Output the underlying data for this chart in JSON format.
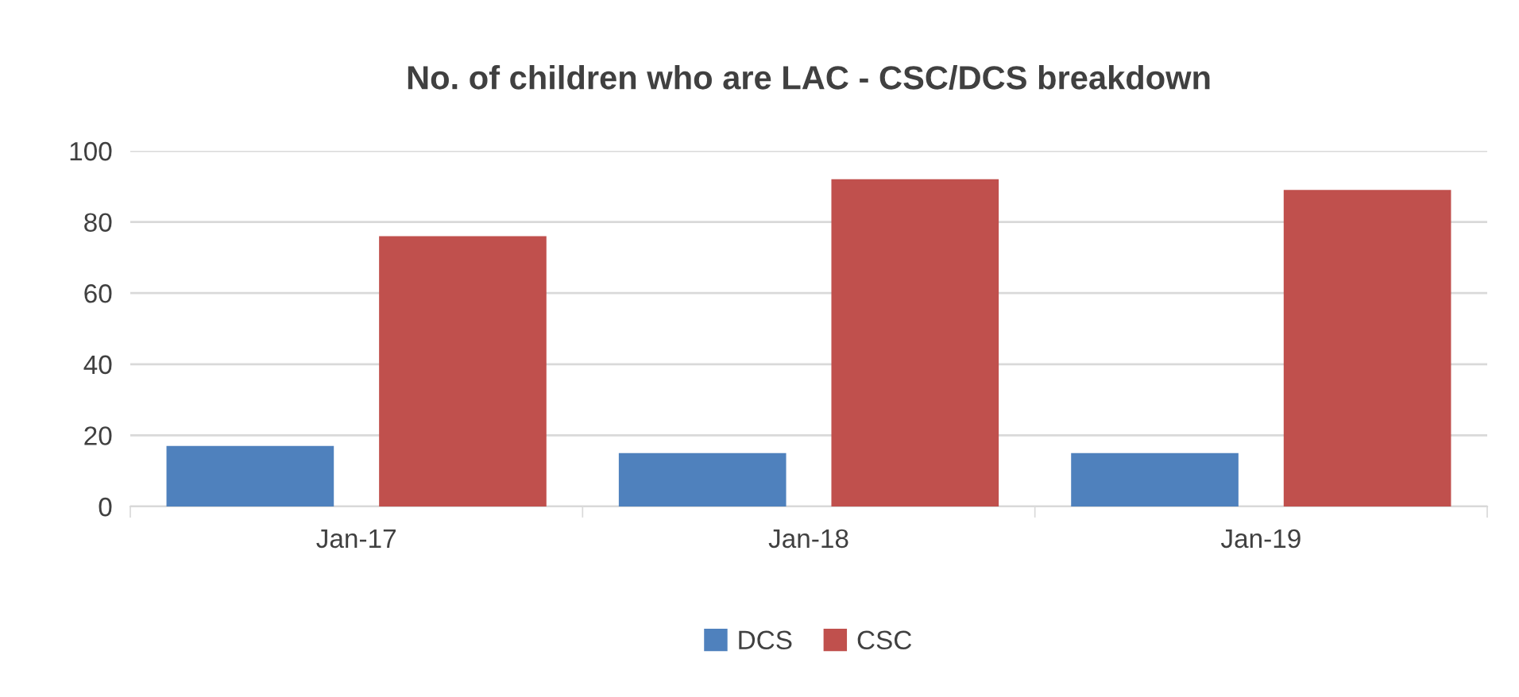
{
  "chart_data": {
    "type": "bar",
    "title": "No. of children who are LAC - CSC/DCS breakdown",
    "categories": [
      "Jan-17",
      "Jan-18",
      "Jan-19"
    ],
    "series": [
      {
        "name": "DCS",
        "color": "#4f81bd",
        "values": [
          17,
          15,
          15
        ]
      },
      {
        "name": "CSC",
        "color": "#c0504d",
        "values": [
          76,
          92,
          89
        ]
      }
    ],
    "ylim": [
      0,
      100
    ],
    "yticks": [
      0,
      20,
      40,
      60,
      80,
      100
    ],
    "grid": "y",
    "legend": "bottom"
  }
}
